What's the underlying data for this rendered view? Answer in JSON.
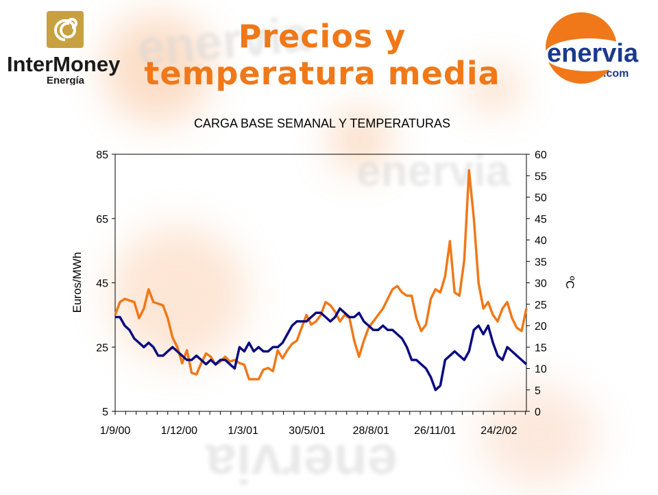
{
  "slide": {
    "title_line1": "Precios y",
    "title_line2": "temperatura media"
  },
  "logos": {
    "left": {
      "brand": "InterMoney",
      "sub": "Energía",
      "color": "#c8a040"
    },
    "right": {
      "brand": "enervia",
      "sub": ".com",
      "circle_color": "#f07818",
      "text_color": "#1a3a8c"
    }
  },
  "watermark": {
    "text": "enervia"
  },
  "chart_data": {
    "type": "line",
    "title": "CARGA BASE SEMANAL Y TEMPERATURAS",
    "ylabel_left": "Euros/MWh",
    "ylabel_right": "ºC",
    "ylim_left": [
      5,
      85
    ],
    "yticks_left": [
      5,
      25,
      45,
      65,
      85
    ],
    "ylim_right": [
      0,
      60
    ],
    "yticks_right": [
      0,
      5,
      10,
      15,
      20,
      25,
      30,
      35,
      40,
      45,
      50,
      55,
      60
    ],
    "xlabels": [
      "1/9/00",
      "1/12/00",
      "1/3/01",
      "30/5/01",
      "28/8/01",
      "26/11/01",
      "24/2/02"
    ],
    "grid": false,
    "series": [
      {
        "axis": "left",
        "color": "#f07818",
        "values": [
          35,
          39,
          40,
          39.5,
          39,
          34,
          37,
          43,
          39,
          38.5,
          38,
          34,
          28,
          25,
          20,
          24,
          17,
          16.5,
          20,
          23,
          22,
          19.5,
          20.5,
          22,
          20.5,
          21,
          20,
          19.5,
          15,
          15,
          15,
          18,
          18.5,
          17.5,
          24,
          21.5,
          24,
          26,
          27,
          31,
          35,
          32,
          33,
          35,
          39,
          38,
          36,
          33,
          35,
          34,
          27,
          22,
          27,
          31,
          33,
          35,
          37,
          40,
          43,
          44,
          42,
          41,
          41,
          34,
          30,
          32,
          40,
          43,
          42,
          47,
          58,
          42,
          41,
          52,
          80,
          65,
          45,
          37,
          39,
          35,
          33,
          37,
          39,
          34,
          31,
          30,
          37
        ],
        "dates_note": ""
      },
      {
        "axis": "right",
        "color": "#0a0a80",
        "values": [
          22,
          22,
          20,
          19,
          17,
          16,
          15,
          16,
          15,
          13,
          13,
          14,
          15,
          14,
          13,
          12,
          12,
          13,
          12,
          11,
          12,
          11,
          12,
          12,
          11,
          10,
          15,
          14,
          16,
          14,
          15,
          14,
          14,
          15,
          15,
          16,
          18,
          20,
          21,
          21,
          21,
          22,
          23,
          23,
          22,
          21,
          22,
          24,
          23,
          22,
          22,
          23,
          21,
          20,
          19,
          19,
          20,
          19,
          19,
          18,
          17,
          15,
          12,
          12,
          11,
          10,
          8,
          5,
          6,
          12,
          13,
          14,
          13,
          12,
          14,
          19,
          20,
          18,
          20,
          16,
          13,
          12,
          15,
          14,
          13,
          12,
          11
        ]
      }
    ]
  }
}
